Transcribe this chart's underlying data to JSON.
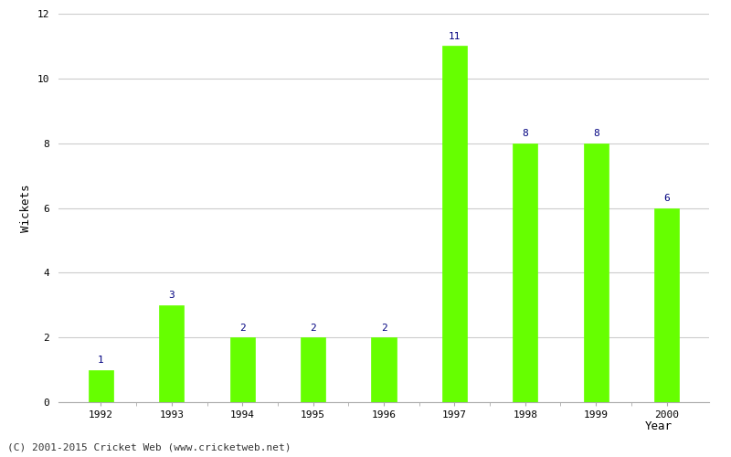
{
  "categories": [
    "1992",
    "1993",
    "1994",
    "1995",
    "1996",
    "1997",
    "1998",
    "1999",
    "2000"
  ],
  "values": [
    1,
    3,
    2,
    2,
    2,
    11,
    8,
    8,
    6
  ],
  "bar_color": "#66ff00",
  "bar_edge_color": "#66ff00",
  "xlabel": "Year",
  "ylabel": "Wickets",
  "ylim": [
    0,
    12
  ],
  "yticks": [
    0,
    2,
    4,
    6,
    8,
    10,
    12
  ],
  "label_color": "#000080",
  "label_fontsize": 8,
  "axis_label_fontsize": 9,
  "tick_fontsize": 8,
  "footer_text": "(C) 2001-2015 Cricket Web (www.cricketweb.net)",
  "footer_fontsize": 8,
  "background_color": "#ffffff",
  "grid_color": "#cccccc",
  "bar_width": 0.35
}
